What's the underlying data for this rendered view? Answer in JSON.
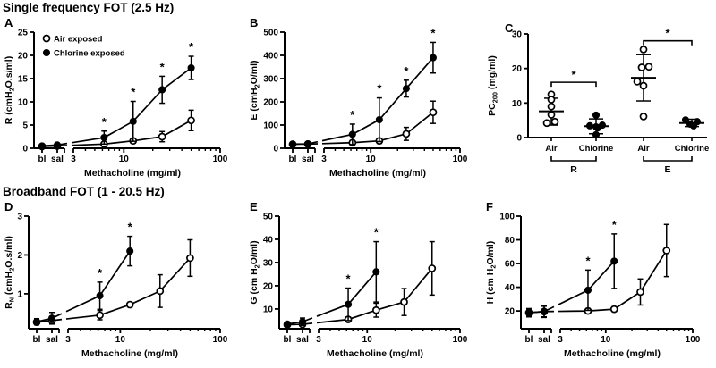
{
  "colors": {
    "ink": "#000000",
    "bg": "#ffffff"
  },
  "sections": [
    {
      "title": "Single frequency FOT (2.5 Hz)"
    },
    {
      "title": "Broadband FOT (1 - 20.5 Hz)"
    }
  ],
  "chart_data": [
    {
      "id": "A",
      "type": "line",
      "panel_label": "A",
      "section": 0,
      "ylabel_parts": [
        {
          "t": "R (cmH"
        },
        {
          "t": "2",
          "sub": true
        },
        {
          "t": "O.s/ml)"
        }
      ],
      "ylim": [
        0,
        25
      ],
      "yticks": [
        0,
        5,
        10,
        15,
        20,
        25
      ],
      "xlabel": "Methacholine (mg/ml)",
      "x_categories": [
        "bl",
        "sal"
      ],
      "xlog": {
        "min": 3,
        "max": 100,
        "major": [
          3,
          10,
          100
        ],
        "minor": [
          4,
          5,
          6,
          7,
          8,
          9,
          20,
          30,
          40,
          50,
          60,
          70,
          80,
          90
        ]
      },
      "doses": [
        6.25,
        12.5,
        25,
        50
      ],
      "legend": true,
      "series": [
        {
          "name": "Air exposed",
          "marker": "open",
          "cat": [
            [
              0.4,
              0.25
            ],
            [
              0.5,
              0.3
            ]
          ],
          "dose": [
            [
              0.9,
              0.35
            ],
            [
              1.6,
              0.5
            ],
            [
              2.5,
              1.1
            ],
            [
              6.0,
              2.2
            ]
          ]
        },
        {
          "name": "Chlorine exposed",
          "marker": "filled",
          "cat": [
            [
              0.5,
              0.3
            ],
            [
              0.7,
              0.4
            ]
          ],
          "dose": [
            [
              2.3,
              1.4
            ],
            [
              5.8,
              4.3
            ],
            [
              12.6,
              2.9
            ],
            [
              17.3,
              2.5
            ]
          ]
        }
      ],
      "sig_dose_idx": [
        0,
        1,
        2,
        3
      ],
      "sig_symbol": "*"
    },
    {
      "id": "B",
      "type": "line",
      "panel_label": "B",
      "section": 0,
      "ylabel_parts": [
        {
          "t": "E (cmH"
        },
        {
          "t": "2",
          "sub": true
        },
        {
          "t": "O/ml)"
        }
      ],
      "ylim": [
        0,
        500
      ],
      "yticks": [
        0,
        100,
        200,
        300,
        400,
        500
      ],
      "xlabel": "Methacholine (mg/ml)",
      "x_categories": [
        "bl",
        "sal"
      ],
      "xlog": {
        "min": 3,
        "max": 100,
        "major": [
          3,
          10,
          100
        ],
        "minor": [
          4,
          5,
          6,
          7,
          8,
          9,
          20,
          30,
          40,
          50,
          60,
          70,
          80,
          90
        ]
      },
      "doses": [
        6.25,
        12.5,
        25,
        50
      ],
      "legend": false,
      "series": [
        {
          "name": "Air exposed",
          "marker": "open",
          "cat": [
            [
              17,
              6
            ],
            [
              18,
              6
            ]
          ],
          "dose": [
            [
              24,
              9
            ],
            [
              32,
              11
            ],
            [
              62,
              28
            ],
            [
              155,
              48
            ]
          ]
        },
        {
          "name": "Chlorine exposed",
          "marker": "filled",
          "cat": [
            [
              18,
              6
            ],
            [
              19,
              6
            ]
          ],
          "dose": [
            [
              60,
              44
            ],
            [
              123,
              94
            ],
            [
              257,
              36
            ],
            [
              390,
              66
            ]
          ]
        }
      ],
      "sig_dose_idx": [
        0,
        1,
        2,
        3
      ],
      "sig_symbol": "*"
    },
    {
      "id": "C",
      "type": "scatter",
      "panel_label": "C",
      "section": 0,
      "ylabel_parts": [
        {
          "t": "PC"
        },
        {
          "t": "200",
          "sub": true
        },
        {
          "t": " (mg/ml)"
        }
      ],
      "ylim": [
        0,
        30
      ],
      "yticks": [
        0,
        10,
        20,
        30
      ],
      "groups": [
        {
          "label": "Air",
          "marker": "open",
          "mean": 7.6,
          "err_lo": 3.6,
          "err_hi": 11.4,
          "points": [
            [
              0,
              12.5
            ],
            [
              0,
              11
            ],
            [
              0,
              9
            ],
            [
              0,
              6.6
            ],
            [
              -5,
              4.2
            ],
            [
              4,
              4.6
            ]
          ]
        },
        {
          "label": "Chlorine",
          "marker": "filled",
          "mean": 3.3,
          "err_lo": 1.1,
          "err_hi": 5.4,
          "points": [
            [
              0,
              6.5
            ],
            [
              -7,
              3.4
            ],
            [
              0,
              3.1
            ],
            [
              7,
              3.6
            ],
            [
              2,
              2.8
            ],
            [
              0,
              0.8
            ]
          ]
        },
        {
          "label": "Air",
          "marker": "open",
          "mean": 17.3,
          "err_lo": 10.6,
          "err_hi": 24.0,
          "points": [
            [
              0,
              25.5
            ],
            [
              -2,
              20.3
            ],
            [
              6,
              20.5
            ],
            [
              -7,
              16.2
            ],
            [
              0,
              15.0
            ],
            [
              0,
              6.1
            ]
          ]
        },
        {
          "label": "Chlorine",
          "marker": "filled",
          "mean": 4.2,
          "err_lo": 3.2,
          "err_hi": 5.3,
          "points": [
            [
              -7,
              5.1
            ],
            [
              6,
              4.6
            ],
            [
              -2,
              3.9
            ],
            [
              2,
              3.4
            ]
          ]
        }
      ],
      "pair_brackets": [
        {
          "from": 0,
          "to": 1,
          "y": 16,
          "star": "*"
        },
        {
          "from": 2,
          "to": 3,
          "y": 28,
          "star": "*"
        }
      ],
      "group_brackets": [
        {
          "from": 0,
          "to": 1,
          "label": "R"
        },
        {
          "from": 2,
          "to": 3,
          "label": "E"
        }
      ]
    },
    {
      "id": "D",
      "type": "line",
      "panel_label": "D",
      "section": 1,
      "ylabel_parts": [
        {
          "t": "R"
        },
        {
          "t": "N",
          "sub": true
        },
        {
          "t": " (cmH"
        },
        {
          "t": "2",
          "sub": true
        },
        {
          "t": "O.s/ml)"
        }
      ],
      "ylim": [
        0.1,
        3
      ],
      "yticks": [
        1,
        2,
        3
      ],
      "xlabel": "Methacholine (mg/ml)",
      "x_categories": [
        "bl",
        "sal"
      ],
      "xlog": {
        "min": 3,
        "max": 100,
        "major": [
          3,
          10,
          100
        ],
        "minor": [
          4,
          5,
          6,
          7,
          8,
          9,
          20,
          30,
          40,
          50,
          60,
          70,
          80,
          90
        ]
      },
      "doses": [
        6.25,
        12.5,
        25,
        50
      ],
      "legend": false,
      "series": [
        {
          "name": "Air exposed",
          "marker": "open",
          "cat": [
            [
              0.27,
              0.07
            ],
            [
              0.31,
              0.09
            ]
          ],
          "dose": [
            [
              0.45,
              0.12
            ],
            [
              0.72,
              0.06
            ],
            [
              1.07,
              0.42
            ],
            [
              1.92,
              0.47
            ]
          ]
        },
        {
          "name": "Chlorine exposed",
          "marker": "filled",
          "cat": [
            [
              0.28,
              0.08
            ],
            [
              0.37,
              0.15
            ]
          ],
          "dose": [
            [
              0.95,
              0.35
            ],
            [
              2.1,
              0.38
            ]
          ]
        }
      ],
      "sig_dose_idx": [
        0,
        1
      ],
      "sig_symbol": "*"
    },
    {
      "id": "E",
      "type": "line",
      "panel_label": "E",
      "section": 1,
      "ylabel_parts": [
        {
          "t": "G (cm H"
        },
        {
          "t": "2",
          "sub": true
        },
        {
          "t": "O/ml)"
        }
      ],
      "ylim": [
        1.5,
        50
      ],
      "yticks": [
        10,
        20,
        30,
        40,
        50
      ],
      "xlabel": "Methacholine (mg/ml)",
      "x_categories": [
        "bl",
        "sal"
      ],
      "xlog": {
        "min": 3,
        "max": 100,
        "major": [
          3,
          10,
          100
        ],
        "minor": [
          4,
          5,
          6,
          7,
          8,
          9,
          20,
          30,
          40,
          50,
          60,
          70,
          80,
          90
        ]
      },
      "doses": [
        6.25,
        12.5,
        25,
        50
      ],
      "legend": false,
      "series": [
        {
          "name": "Air exposed",
          "marker": "open",
          "cat": [
            [
              3.2,
              0.9
            ],
            [
              3.4,
              0.9
            ]
          ],
          "dose": [
            [
              5.5,
              1.0
            ],
            [
              9.5,
              3.0
            ],
            [
              13,
              5.8
            ],
            [
              27.5,
              11.5
            ]
          ]
        },
        {
          "name": "Chlorine exposed",
          "marker": "filled",
          "cat": [
            [
              3.5,
              0.9
            ],
            [
              4.5,
              1.6
            ]
          ],
          "dose": [
            [
              12,
              7
            ],
            [
              26,
              13
            ]
          ]
        }
      ],
      "sig_dose_idx": [
        0,
        1
      ],
      "sig_symbol": "*"
    },
    {
      "id": "F",
      "type": "line",
      "panel_label": "F",
      "section": 1,
      "ylabel_parts": [
        {
          "t": "H (cm H"
        },
        {
          "t": "2",
          "sub": true
        },
        {
          "t": "O/ml)"
        }
      ],
      "ylim": [
        5,
        100
      ],
      "yticks": [
        20,
        40,
        60,
        80,
        100
      ],
      "xlabel": "Methacholine (mg/ml)",
      "x_categories": [
        "bl",
        "sal"
      ],
      "xlog": {
        "min": 3,
        "max": 100,
        "major": [
          3,
          10,
          100
        ],
        "minor": [
          4,
          5,
          6,
          7,
          8,
          9,
          20,
          30,
          40,
          50,
          60,
          70,
          80,
          90
        ]
      },
      "doses": [
        6.25,
        12.5,
        25,
        50
      ],
      "legend": false,
      "series": [
        {
          "name": "Air exposed",
          "marker": "open",
          "cat": [
            [
              18.5,
              3
            ],
            [
              19.5,
              5
            ]
          ],
          "dose": [
            [
              20,
              2
            ],
            [
              21.5,
              2
            ],
            [
              36,
              11
            ],
            [
              71,
              22
            ]
          ]
        },
        {
          "name": "Chlorine exposed",
          "marker": "filled",
          "cat": [
            [
              18.5,
              3.5
            ],
            [
              19.5,
              4.5
            ]
          ],
          "dose": [
            [
              37.5,
              17
            ],
            [
              62,
              23
            ]
          ]
        }
      ],
      "sig_dose_idx": [
        0,
        1
      ],
      "sig_symbol": "*"
    }
  ]
}
